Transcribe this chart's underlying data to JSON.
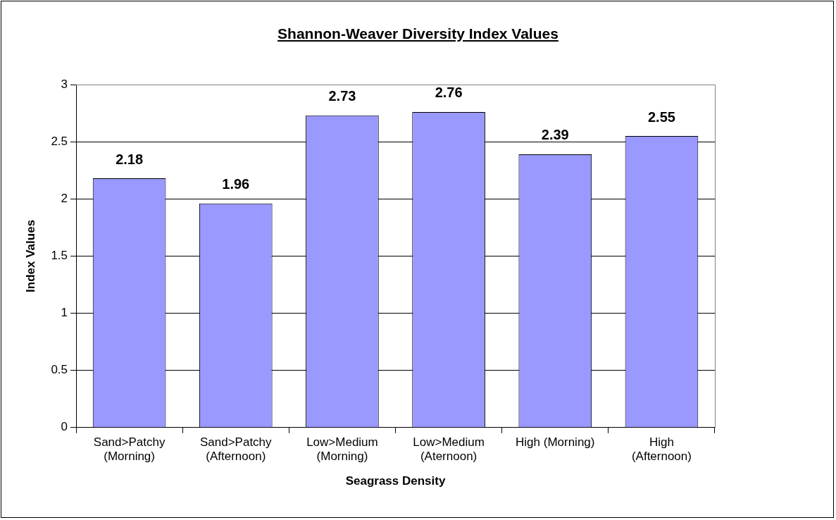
{
  "chart_data": {
    "type": "bar",
    "title": "Shannon-Weaver Diversity Index Values",
    "xlabel": "Seagrass Density",
    "ylabel": "Index Values",
    "categories": [
      "Sand>Patchy\n(Morning)",
      "Sand>Patchy\n(Afternoon)",
      "Low>Medium\n(Morning)",
      "Low>Medium\n(Aternoon)",
      "High (Morning)",
      "High\n(Afternoon)"
    ],
    "values": [
      2.18,
      1.96,
      2.73,
      2.76,
      2.39,
      2.55
    ],
    "color": "#9999ff",
    "ylim": [
      0,
      3
    ],
    "yticks": [
      0,
      0.5,
      1,
      1.5,
      2,
      2.5,
      3
    ],
    "grid": "y",
    "legend": false,
    "data_labels": true
  }
}
